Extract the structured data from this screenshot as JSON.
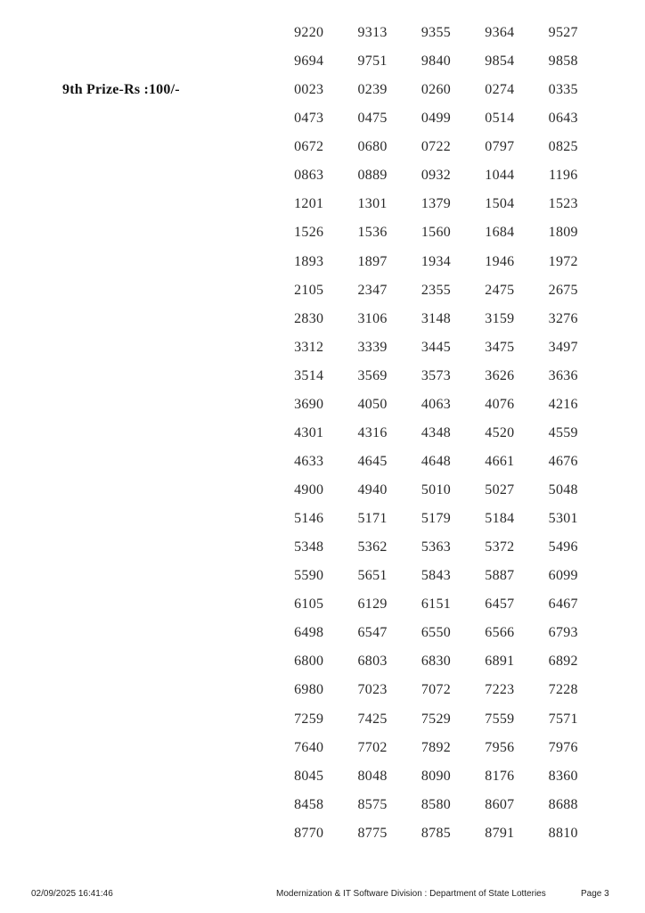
{
  "page": {
    "background_color": "#ffffff",
    "number_text_color": "#2a2a2a"
  },
  "prize_section": {
    "label": "9th Prize-Rs :100/-"
  },
  "grid": {
    "columns": 5,
    "rows": [
      [
        "9220",
        "9313",
        "9355",
        "9364",
        "9527"
      ],
      [
        "9694",
        "9751",
        "9840",
        "9854",
        "9858"
      ],
      [
        "0023",
        "0239",
        "0260",
        "0274",
        "0335"
      ],
      [
        "0473",
        "0475",
        "0499",
        "0514",
        "0643"
      ],
      [
        "0672",
        "0680",
        "0722",
        "0797",
        "0825"
      ],
      [
        "0863",
        "0889",
        "0932",
        "1044",
        "1196"
      ],
      [
        "1201",
        "1301",
        "1379",
        "1504",
        "1523"
      ],
      [
        "1526",
        "1536",
        "1560",
        "1684",
        "1809"
      ],
      [
        "1893",
        "1897",
        "1934",
        "1946",
        "1972"
      ],
      [
        "2105",
        "2347",
        "2355",
        "2475",
        "2675"
      ],
      [
        "2830",
        "3106",
        "3148",
        "3159",
        "3276"
      ],
      [
        "3312",
        "3339",
        "3445",
        "3475",
        "3497"
      ],
      [
        "3514",
        "3569",
        "3573",
        "3626",
        "3636"
      ],
      [
        "3690",
        "4050",
        "4063",
        "4076",
        "4216"
      ],
      [
        "4301",
        "4316",
        "4348",
        "4520",
        "4559"
      ],
      [
        "4633",
        "4645",
        "4648",
        "4661",
        "4676"
      ],
      [
        "4900",
        "4940",
        "5010",
        "5027",
        "5048"
      ],
      [
        "5146",
        "5171",
        "5179",
        "5184",
        "5301"
      ],
      [
        "5348",
        "5362",
        "5363",
        "5372",
        "5496"
      ],
      [
        "5590",
        "5651",
        "5843",
        "5887",
        "6099"
      ],
      [
        "6105",
        "6129",
        "6151",
        "6457",
        "6467"
      ],
      [
        "6498",
        "6547",
        "6550",
        "6566",
        "6793"
      ],
      [
        "6800",
        "6803",
        "6830",
        "6891",
        "6892"
      ],
      [
        "6980",
        "7023",
        "7072",
        "7223",
        "7228"
      ],
      [
        "7259",
        "7425",
        "7529",
        "7559",
        "7571"
      ],
      [
        "7640",
        "7702",
        "7892",
        "7956",
        "7976"
      ],
      [
        "8045",
        "8048",
        "8090",
        "8176",
        "8360"
      ],
      [
        "8458",
        "8575",
        "8580",
        "8607",
        "8688"
      ],
      [
        "8770",
        "8775",
        "8785",
        "8791",
        "8810"
      ]
    ]
  },
  "footer": {
    "timestamp": "02/09/2025 16:41:46",
    "division": "Modernization & IT Software Division : Department of State Lotteries",
    "page_label": "Page 3"
  }
}
